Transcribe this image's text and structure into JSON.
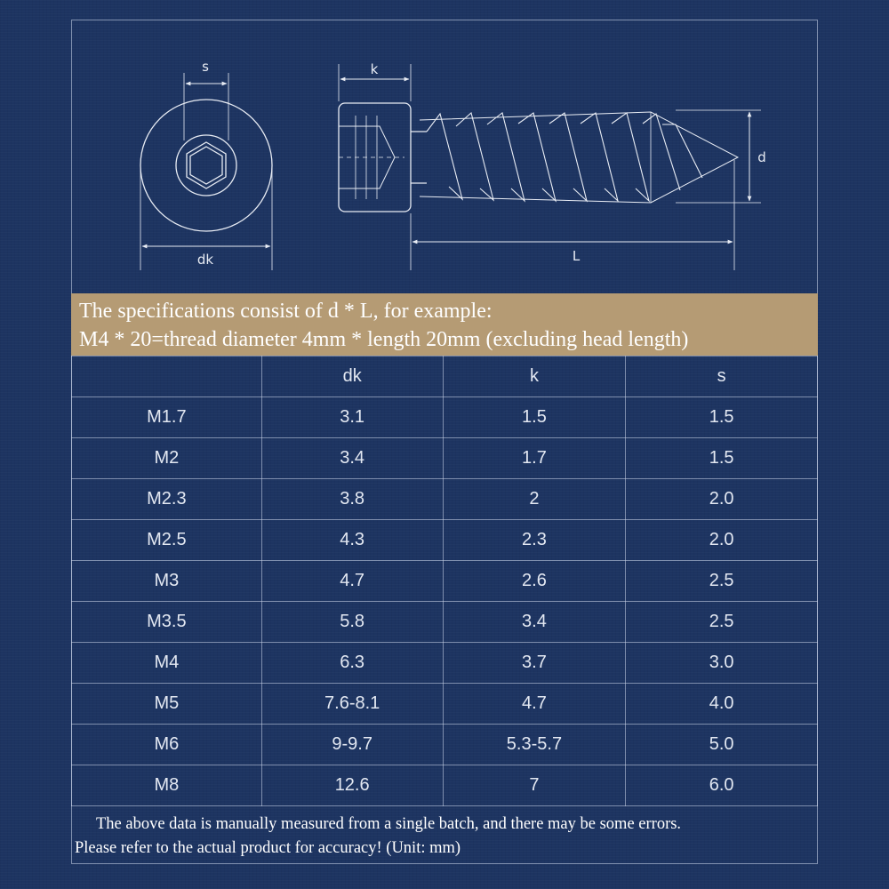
{
  "diagram": {
    "labels": {
      "s": "s",
      "dk": "dk",
      "k": "k",
      "d": "d",
      "L": "L"
    }
  },
  "banner": {
    "line1": "The specifications consist of d * L, for example:",
    "line2": "M4 * 20=thread diameter 4mm * length 20mm (excluding head length)"
  },
  "table": {
    "headers": [
      "",
      "dk",
      "k",
      "s"
    ],
    "rows": [
      [
        "M1.7",
        "3.1",
        "1.5",
        "1.5"
      ],
      [
        "M2",
        "3.4",
        "1.7",
        "1.5"
      ],
      [
        "M2.3",
        "3.8",
        "2",
        "2.0"
      ],
      [
        "M2.5",
        "4.3",
        "2.3",
        "2.0"
      ],
      [
        "M3",
        "4.7",
        "2.6",
        "2.5"
      ],
      [
        "M3.5",
        "5.8",
        "3.4",
        "2.5"
      ],
      [
        "M4",
        "6.3",
        "3.7",
        "3.0"
      ],
      [
        "M5",
        "7.6-8.1",
        "4.7",
        "4.0"
      ],
      [
        "M6",
        "9-9.7",
        "5.3-5.7",
        "5.0"
      ],
      [
        "M8",
        "12.6",
        "7",
        "6.0"
      ]
    ]
  },
  "footnote": {
    "line1": "The above data is manually measured from a single batch, and there may be some errors.",
    "line2": "Please refer to the actual product for accuracy! (Unit: mm)"
  }
}
